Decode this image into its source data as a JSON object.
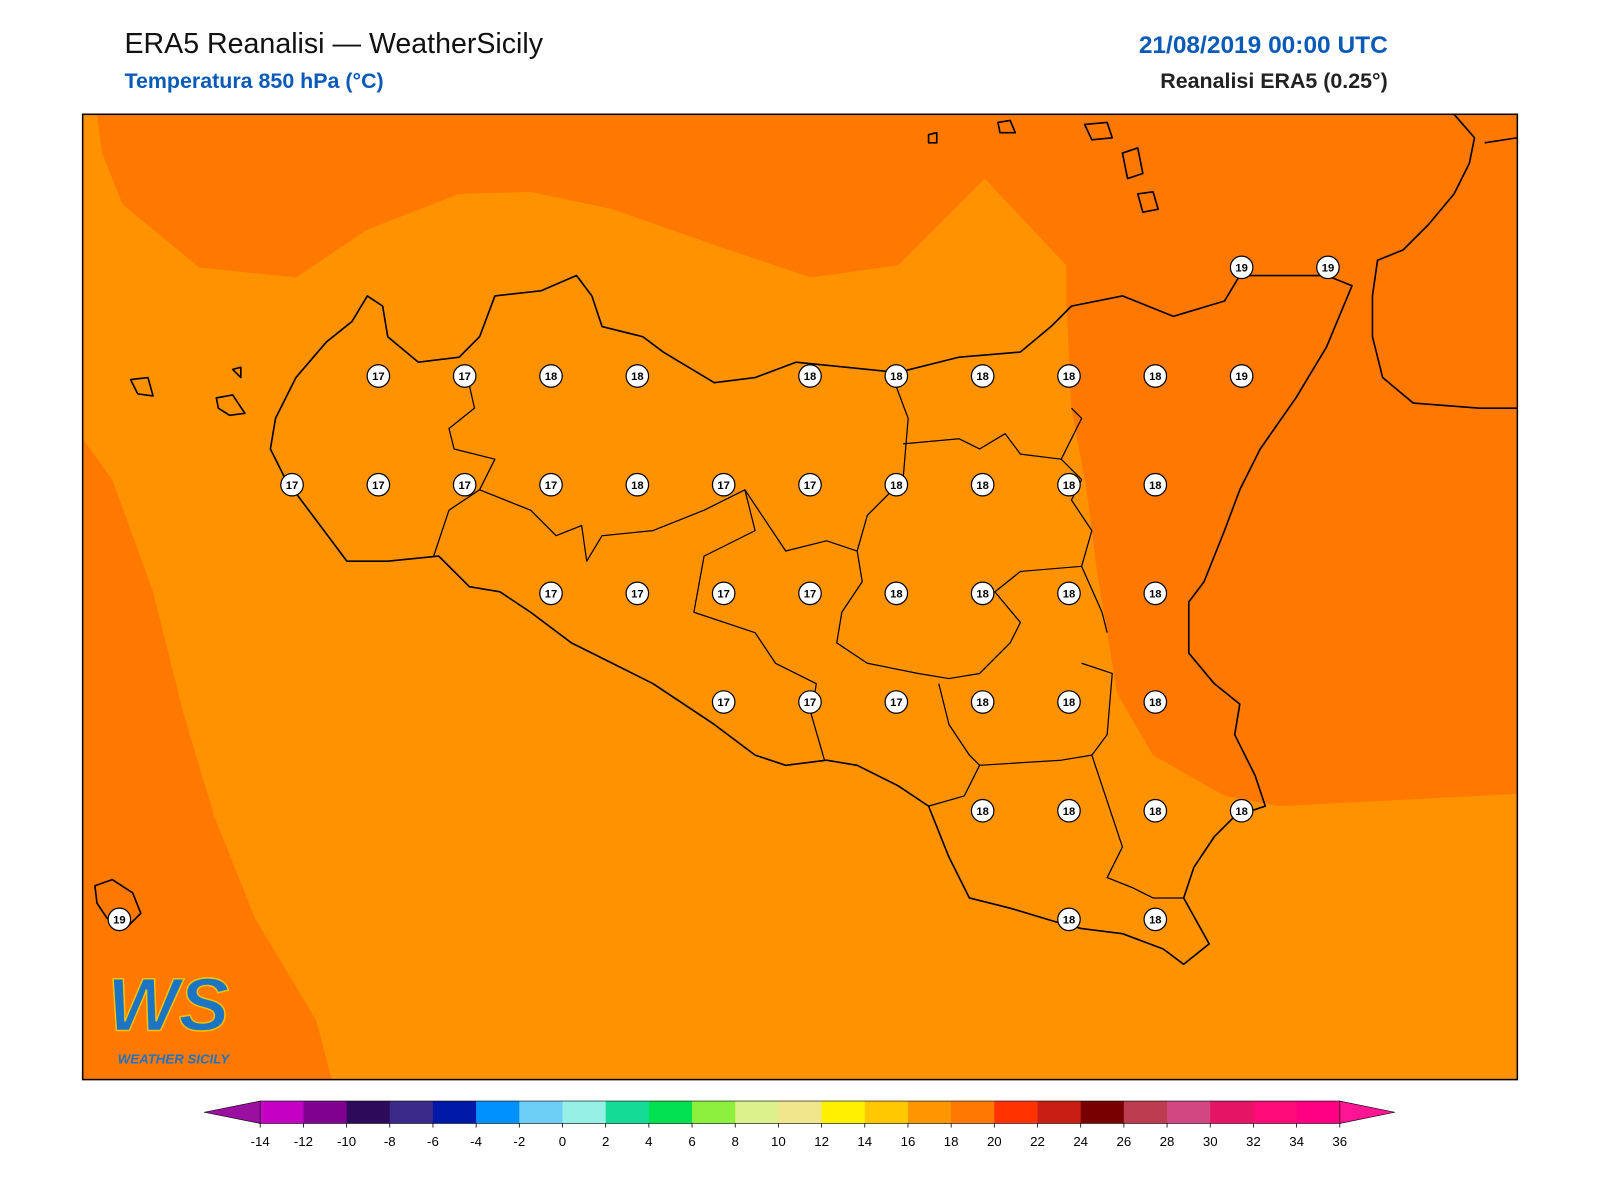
{
  "header": {
    "title": "ERA5 Reanalisi — WeatherSicily",
    "subtitle": "Temperatura 850 hPa (°C)",
    "datetime": "21/08/2019 00:00 UTC",
    "model": "Reanalisi ERA5 (0.25°)"
  },
  "map": {
    "grid_values": [
      [
        null,
        null,
        null,
        null,
        null,
        null,
        null,
        null,
        null,
        null,
        null,
        null,
        null,
        19,
        19
      ],
      [
        null,
        null,
        null,
        17,
        17,
        18,
        18,
        null,
        18,
        18,
        18,
        18,
        18,
        19,
        null
      ],
      [
        null,
        null,
        17,
        17,
        17,
        17,
        18,
        17,
        17,
        18,
        18,
        18,
        18,
        null,
        null
      ],
      [
        null,
        null,
        null,
        null,
        null,
        17,
        17,
        17,
        17,
        18,
        18,
        18,
        18,
        null,
        null
      ],
      [
        null,
        null,
        null,
        null,
        null,
        null,
        null,
        17,
        17,
        17,
        18,
        18,
        18,
        null,
        null
      ],
      [
        null,
        null,
        null,
        null,
        null,
        null,
        null,
        null,
        null,
        null,
        18,
        18,
        18,
        18,
        null
      ],
      [
        19,
        null,
        null,
        null,
        null,
        null,
        null,
        null,
        null,
        null,
        null,
        18,
        18,
        null,
        null
      ]
    ]
  },
  "colorbar": {
    "ticks": [
      -14,
      -12,
      -10,
      -8,
      -6,
      -4,
      -2,
      0,
      2,
      4,
      6,
      8,
      10,
      12,
      14,
      16,
      18,
      20,
      22,
      24,
      26,
      28,
      30,
      32,
      34,
      36
    ],
    "colors": [
      "#c400c4",
      "#7f0090",
      "#2e0a5a",
      "#3c2a8a",
      "#0018a8",
      "#0090ff",
      "#6ecff6",
      "#96f0e6",
      "#14dc96",
      "#00e050",
      "#8cf03c",
      "#dcf08c",
      "#f0e68c",
      "#fff000",
      "#ffc800",
      "#ff9600",
      "#ff7800",
      "#ff3200",
      "#c81e14",
      "#780000",
      "#be3c50",
      "#d24682",
      "#e61464",
      "#ff0a78",
      "#ff0082"
    ],
    "under_color": "#9b0fa0",
    "over_color": "#ff1493"
  },
  "logo": {
    "mark": "WS",
    "name": "WEATHER SICILY"
  }
}
